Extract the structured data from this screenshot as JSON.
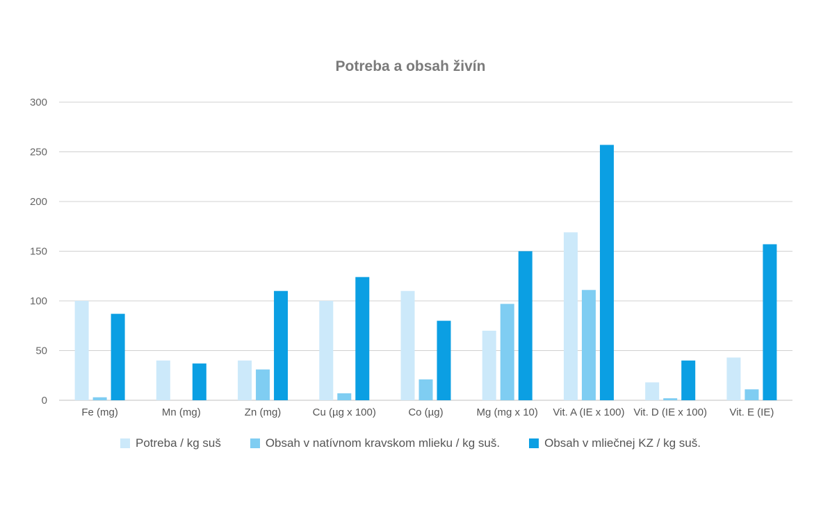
{
  "chart_data": {
    "type": "bar",
    "title": "Potreba a obsah živín",
    "categories": [
      "Fe (mg)",
      "Mn (mg)",
      "Zn (mg)",
      "Cu (µg x 100)",
      "Co (µg)",
      "Mg (mg x 10)",
      "Vit. A (IE x 100)",
      "Vit. D (IE x 100)",
      "Vit. E (IE)"
    ],
    "series": [
      {
        "name": "Potreba / kg suš",
        "color": "#cce9fa",
        "values": [
          100,
          40,
          40,
          100,
          110,
          70,
          169,
          18,
          43
        ]
      },
      {
        "name": "Obsah v natívnom kravskom mlieku / kg suš.",
        "color": "#7fcdf2",
        "values": [
          3,
          0,
          31,
          7,
          21,
          97,
          111,
          2,
          11
        ]
      },
      {
        "name": "Obsah v mliečnej KZ / kg suš.",
        "color": "#0b9fe3",
        "values": [
          87,
          37,
          110,
          124,
          80,
          150,
          257,
          40,
          157
        ]
      }
    ],
    "ylim": [
      0,
      300
    ],
    "yticks": [
      0,
      50,
      100,
      150,
      200,
      250,
      300
    ],
    "grid": true,
    "legend_position": "bottom"
  }
}
